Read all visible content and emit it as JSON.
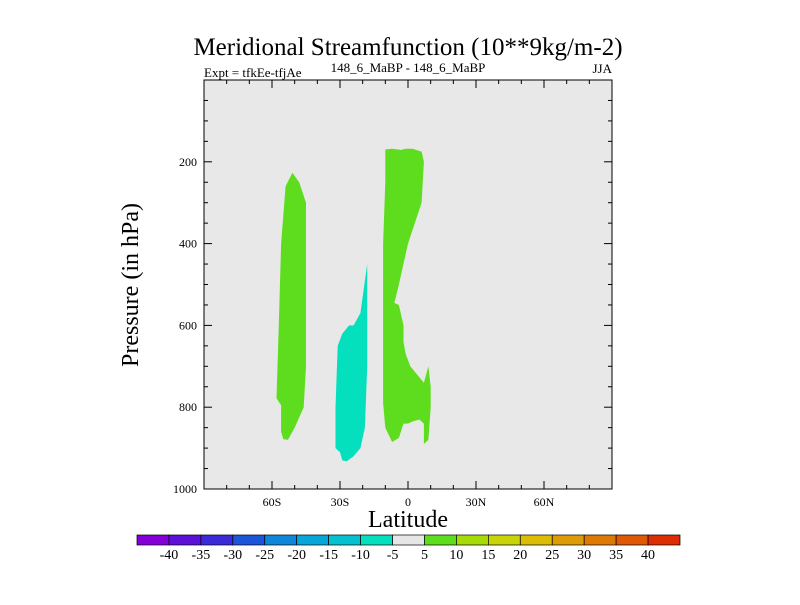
{
  "title": "Meridional Streamfunction (10**9kg/m-2)",
  "subtitle_left": "Expt = tfkEe-tfjAe",
  "subtitle_center": "148_6_MaBP - 148_6_MaBP",
  "subtitle_right": "JJA",
  "colors": {
    "background": "#ffffff",
    "plot_bg": "#e8e8e8",
    "positive_fill": "#5edd1e",
    "negative_fill": "#04e0be"
  },
  "chart_data": {
    "type": "contour",
    "title": "Meridional Streamfunction (10**9kg/m-2)",
    "xlabel": "Latitude",
    "ylabel": "Pressure (in hPa)",
    "xlim": [
      -90,
      90
    ],
    "ylim": [
      1000,
      0
    ],
    "x_ticks": [
      {
        "value": -60,
        "label": "60S"
      },
      {
        "value": -30,
        "label": "30S"
      },
      {
        "value": 0,
        "label": "0"
      },
      {
        "value": 30,
        "label": "30N"
      },
      {
        "value": 60,
        "label": "60N"
      }
    ],
    "y_ticks": [
      {
        "value": 200,
        "label": "200"
      },
      {
        "value": 400,
        "label": "400"
      },
      {
        "value": 600,
        "label": "600"
      },
      {
        "value": 800,
        "label": "800"
      },
      {
        "value": 1000,
        "label": "1000"
      }
    ],
    "regions": [
      {
        "level": "5 to 10",
        "color": "#5edd1e",
        "points": [
          [
            -56,
            795
          ],
          [
            -58,
            778
          ],
          [
            -57,
            600
          ],
          [
            -56,
            400
          ],
          [
            -54,
            260
          ],
          [
            -51,
            227
          ],
          [
            -48,
            250
          ],
          [
            -45,
            300
          ],
          [
            -45,
            500
          ],
          [
            -45,
            700
          ],
          [
            -46,
            800
          ],
          [
            -50,
            850
          ],
          [
            -53,
            880
          ],
          [
            -55,
            878
          ],
          [
            -56,
            860
          ]
        ]
      },
      {
        "level": "-10 to -5",
        "color": "#04e0be",
        "points": [
          [
            -30,
            910
          ],
          [
            -32,
            900
          ],
          [
            -32,
            800
          ],
          [
            -31,
            650
          ],
          [
            -29,
            620
          ],
          [
            -26,
            600
          ],
          [
            -24,
            600
          ],
          [
            -21,
            570
          ],
          [
            -18,
            450
          ],
          [
            -18,
            550
          ],
          [
            -18,
            700
          ],
          [
            -19,
            850
          ],
          [
            -21,
            900
          ],
          [
            -24,
            920
          ],
          [
            -27,
            932
          ],
          [
            -29,
            930
          ]
        ]
      },
      {
        "level": "5 to 10",
        "color": "#5edd1e",
        "points": [
          [
            -10,
            850
          ],
          [
            -11,
            790
          ],
          [
            -11,
            600
          ],
          [
            -11,
            400
          ],
          [
            -10,
            250
          ],
          [
            -10,
            170
          ],
          [
            -7,
            168
          ],
          [
            -3,
            171
          ],
          [
            -1,
            168
          ],
          [
            2,
            168
          ],
          [
            6,
            175
          ],
          [
            7,
            200
          ],
          [
            6,
            300
          ],
          [
            3,
            350
          ],
          [
            0,
            400
          ],
          [
            -4,
            500
          ],
          [
            -6,
            545
          ],
          [
            -4,
            550
          ],
          [
            -2,
            600
          ],
          [
            -2,
            640
          ],
          [
            -1,
            670
          ],
          [
            1,
            700
          ],
          [
            4,
            720
          ],
          [
            7,
            740
          ],
          [
            9,
            700
          ],
          [
            10,
            750
          ],
          [
            10,
            800
          ],
          [
            9,
            880
          ],
          [
            7,
            890
          ],
          [
            7,
            840
          ],
          [
            5,
            830
          ],
          [
            2,
            835
          ],
          [
            0,
            840
          ],
          [
            -2,
            840
          ],
          [
            -4,
            875
          ],
          [
            -7,
            885
          ]
        ]
      }
    ],
    "colorbar": {
      "labels": [
        "-40",
        "-35",
        "-30",
        "-25",
        "-20",
        "-15",
        "-10",
        "-5",
        "5",
        "10",
        "15",
        "20",
        "25",
        "30",
        "35",
        "40"
      ],
      "colors": [
        "#8400d8",
        "#5b11d8",
        "#3a2ad8",
        "#1b55d8",
        "#0f86d8",
        "#07a6d8",
        "#05c1d0",
        "#04e0be",
        "#e6e6e6",
        "#5edd1e",
        "#a6db07",
        "#c8d308",
        "#dcbc05",
        "#dd9c05",
        "#de7a04",
        "#de5805",
        "#dd2d04"
      ]
    }
  }
}
